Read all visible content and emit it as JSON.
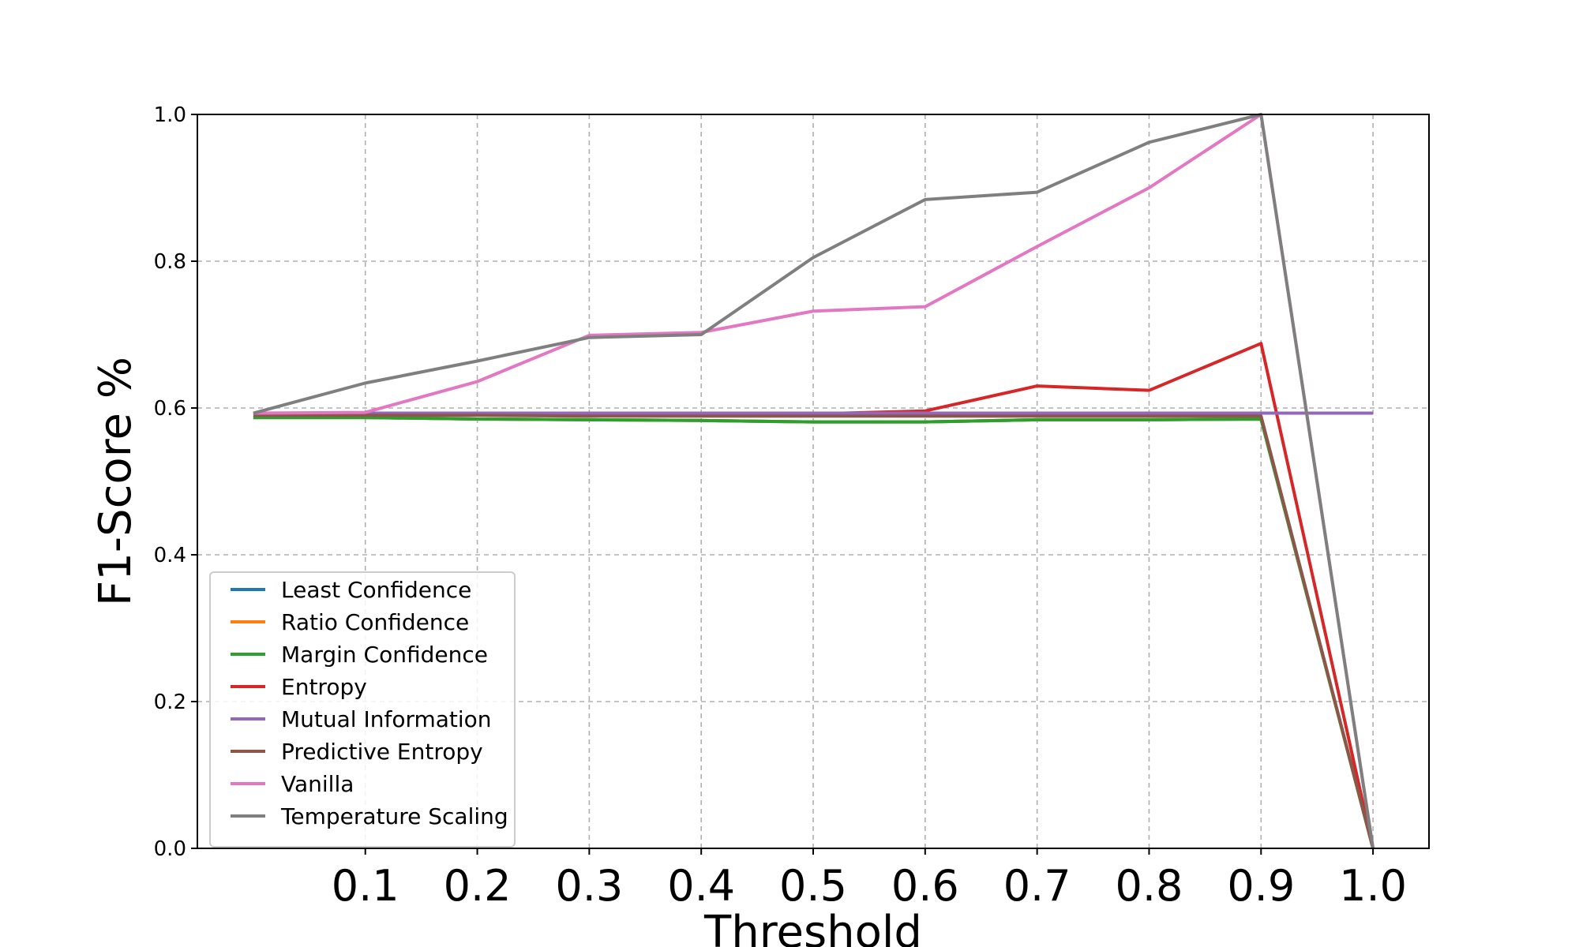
{
  "chart_data": {
    "type": "line",
    "title": "",
    "xlabel": "Threshold",
    "ylabel": "F1-Score %",
    "x": [
      0.0,
      0.1,
      0.2,
      0.3,
      0.4,
      0.5,
      0.6,
      0.7,
      0.8,
      0.9,
      1.0
    ],
    "xticks": [
      "0.1",
      "0.2",
      "0.3",
      "0.4",
      "0.5",
      "0.6",
      "0.7",
      "0.8",
      "0.9",
      "1.0"
    ],
    "yticks": [
      "0.0",
      "0.2",
      "0.4",
      "0.6",
      "0.8",
      "1.0"
    ],
    "xlim": [
      -0.05,
      1.05
    ],
    "ylim": [
      0.0,
      1.0
    ],
    "grid": true,
    "legend_position": "lower-left",
    "series": [
      {
        "name": "Least Confidence",
        "color": "#1f77b4",
        "values": [
          0.587,
          0.587,
          0.585,
          0.584,
          0.583,
          0.581,
          0.581,
          0.584,
          0.584,
          0.585,
          0.0
        ]
      },
      {
        "name": "Ratio Confidence",
        "color": "#ff7f0e",
        "values": [
          0.587,
          0.587,
          0.585,
          0.584,
          0.583,
          0.581,
          0.581,
          0.584,
          0.584,
          0.585,
          0.0
        ]
      },
      {
        "name": "Margin Confidence",
        "color": "#2ca02c",
        "values": [
          0.587,
          0.587,
          0.585,
          0.584,
          0.583,
          0.581,
          0.581,
          0.584,
          0.584,
          0.585,
          0.0
        ]
      },
      {
        "name": "Entropy",
        "color": "#d62728",
        "values": [
          0.593,
          0.593,
          0.592,
          0.592,
          0.592,
          0.592,
          0.596,
          0.63,
          0.624,
          0.688,
          0.0
        ]
      },
      {
        "name": "Mutual Information",
        "color": "#9467bd",
        "values": [
          0.593,
          0.593,
          0.593,
          0.593,
          0.593,
          0.593,
          0.593,
          0.593,
          0.593,
          0.593,
          0.593
        ]
      },
      {
        "name": "Predictive Entropy",
        "color": "#8c564b",
        "values": [
          0.59,
          0.59,
          0.59,
          0.589,
          0.589,
          0.589,
          0.589,
          0.589,
          0.589,
          0.589,
          0.0
        ]
      },
      {
        "name": "Vanilla",
        "color": "#e377c2",
        "values": [
          0.593,
          0.594,
          0.636,
          0.699,
          0.703,
          0.732,
          0.738,
          0.82,
          0.9,
          1.0,
          0.0
        ]
      },
      {
        "name": "Temperature Scaling",
        "color": "#7f7f7f",
        "values": [
          0.593,
          0.634,
          0.664,
          0.696,
          0.7,
          0.805,
          0.884,
          0.894,
          0.962,
          1.0,
          0.0
        ]
      }
    ]
  }
}
